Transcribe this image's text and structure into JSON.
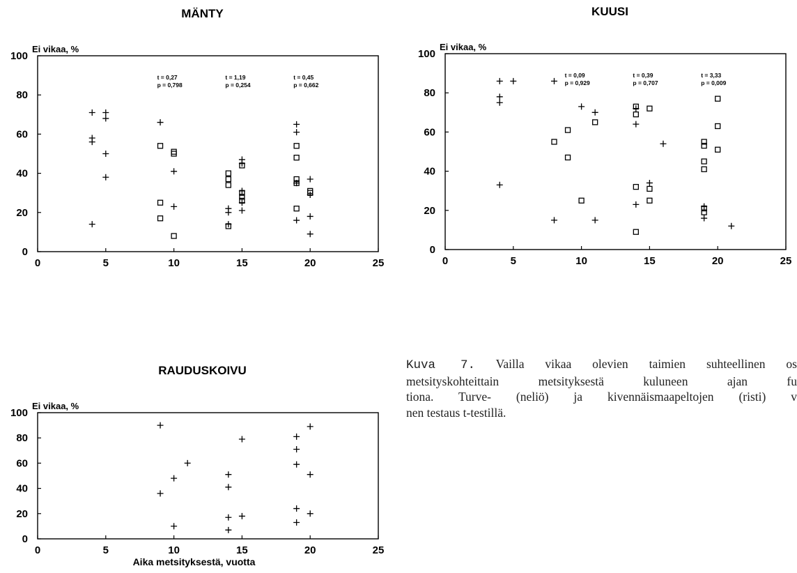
{
  "caption": {
    "label": "Kuva 7.",
    "lines": [
      "Vailla vikaa olevien taimien suhteellinen os",
      "metsityskohteittain metsityksestä kuluneen ajan fu",
      "tiona. Turve- (neliö) ja kivennäismaapeltojen (risti) v",
      "nen testaus t-testillä."
    ]
  },
  "chart_data": [
    {
      "type": "scatter",
      "title": "MÄNTY",
      "ylabel": "Ei vikaa, %",
      "xlabel": "",
      "xlim": [
        0,
        25
      ],
      "ylim": [
        0,
        100
      ],
      "xticks": [
        "0",
        "5",
        "10",
        "15",
        "20",
        "25"
      ],
      "yticks": [
        "0",
        "20",
        "40",
        "60",
        "80",
        "100"
      ],
      "grid": false,
      "series": [
        {
          "marker": "square",
          "points": [
            [
              9,
              54
            ],
            [
              9,
              25
            ],
            [
              9,
              17
            ],
            [
              10,
              51
            ],
            [
              10,
              50
            ],
            [
              10,
              8
            ],
            [
              14,
              40
            ],
            [
              14,
              37
            ],
            [
              14,
              34
            ],
            [
              14,
              13
            ],
            [
              15,
              44
            ],
            [
              15,
              30
            ],
            [
              15,
              28
            ],
            [
              15,
              26
            ],
            [
              19,
              54
            ],
            [
              19,
              48
            ],
            [
              19,
              37
            ],
            [
              19,
              35
            ],
            [
              19,
              22
            ],
            [
              20,
              31
            ],
            [
              20,
              30
            ]
          ]
        },
        {
          "marker": "plus",
          "points": [
            [
              4,
              71
            ],
            [
              4,
              58
            ],
            [
              4,
              56
            ],
            [
              4,
              14
            ],
            [
              5,
              71
            ],
            [
              5,
              68
            ],
            [
              5,
              50
            ],
            [
              5,
              38
            ],
            [
              9,
              66
            ],
            [
              10,
              41
            ],
            [
              10,
              23
            ],
            [
              14,
              22
            ],
            [
              14,
              20
            ],
            [
              14,
              14
            ],
            [
              15,
              47
            ],
            [
              15,
              45
            ],
            [
              15,
              31
            ],
            [
              15,
              25
            ],
            [
              15,
              21
            ],
            [
              19,
              65
            ],
            [
              19,
              61
            ],
            [
              19,
              35
            ],
            [
              19,
              16
            ],
            [
              20,
              37
            ],
            [
              20,
              29
            ],
            [
              20,
              18
            ],
            [
              20,
              9
            ]
          ]
        }
      ],
      "annotations": [
        {
          "x": 10,
          "lines": [
            "t = 0,27",
            "p = 0,798"
          ]
        },
        {
          "x": 15,
          "lines": [
            "t = 1,19",
            "p = 0,254"
          ]
        },
        {
          "x": 20,
          "lines": [
            "t = 0,45",
            "p = 0,662"
          ]
        }
      ]
    },
    {
      "type": "scatter",
      "title": "KUUSI",
      "ylabel": "Ei vikaa, %",
      "xlabel": "",
      "xlim": [
        0,
        25
      ],
      "ylim": [
        0,
        100
      ],
      "xticks": [
        "0",
        "5",
        "10",
        "15",
        "20",
        "25"
      ],
      "yticks": [
        "0",
        "20",
        "40",
        "60",
        "80",
        "100"
      ],
      "grid": false,
      "series": [
        {
          "marker": "square",
          "points": [
            [
              8,
              55
            ],
            [
              9,
              61
            ],
            [
              9,
              47
            ],
            [
              10,
              25
            ],
            [
              11,
              65
            ],
            [
              14,
              73
            ],
            [
              14,
              69
            ],
            [
              14,
              32
            ],
            [
              14,
              9
            ],
            [
              15,
              72
            ],
            [
              15,
              31
            ],
            [
              15,
              25
            ],
            [
              19,
              55
            ],
            [
              19,
              53
            ],
            [
              19,
              45
            ],
            [
              19,
              41
            ],
            [
              19,
              21
            ],
            [
              19,
              19
            ],
            [
              20,
              77
            ],
            [
              20,
              63
            ],
            [
              20,
              51
            ]
          ]
        },
        {
          "marker": "plus",
          "points": [
            [
              4,
              86
            ],
            [
              4,
              78
            ],
            [
              4,
              75
            ],
            [
              4,
              33
            ],
            [
              5,
              86
            ],
            [
              8,
              86
            ],
            [
              8,
              15
            ],
            [
              10,
              73
            ],
            [
              11,
              70
            ],
            [
              11,
              15
            ],
            [
              14,
              72
            ],
            [
              14,
              64
            ],
            [
              14,
              23
            ],
            [
              15,
              34
            ],
            [
              16,
              54
            ],
            [
              19,
              22
            ],
            [
              19,
              16
            ],
            [
              21,
              12
            ]
          ]
        }
      ],
      "annotations": [
        {
          "x": 10,
          "lines": [
            "t = 0,09",
            "p = 0,929"
          ]
        },
        {
          "x": 15,
          "lines": [
            "t = 0,39",
            "p = 0,707"
          ]
        },
        {
          "x": 20,
          "lines": [
            "t = 3,33",
            "p = 0,009"
          ]
        }
      ]
    },
    {
      "type": "scatter",
      "title": "RAUDUSKOIVU",
      "ylabel": "Ei vikaa, %",
      "xlabel": "Aika metsityksestä, vuotta",
      "xlim": [
        0,
        25
      ],
      "ylim": [
        0,
        100
      ],
      "xticks": [
        "0",
        "5",
        "10",
        "15",
        "20",
        "25"
      ],
      "yticks": [
        "0",
        "20",
        "40",
        "60",
        "80",
        "100"
      ],
      "grid": false,
      "series": [
        {
          "marker": "plus",
          "points": [
            [
              9,
              90
            ],
            [
              9,
              36
            ],
            [
              10,
              48
            ],
            [
              10,
              10
            ],
            [
              11,
              60
            ],
            [
              14,
              51
            ],
            [
              14,
              41
            ],
            [
              14,
              17
            ],
            [
              14,
              7
            ],
            [
              15,
              79
            ],
            [
              15,
              18
            ],
            [
              19,
              81
            ],
            [
              19,
              71
            ],
            [
              19,
              59
            ],
            [
              19,
              24
            ],
            [
              19,
              13
            ],
            [
              20,
              89
            ],
            [
              20,
              51
            ],
            [
              20,
              20
            ]
          ]
        }
      ],
      "annotations": []
    }
  ]
}
